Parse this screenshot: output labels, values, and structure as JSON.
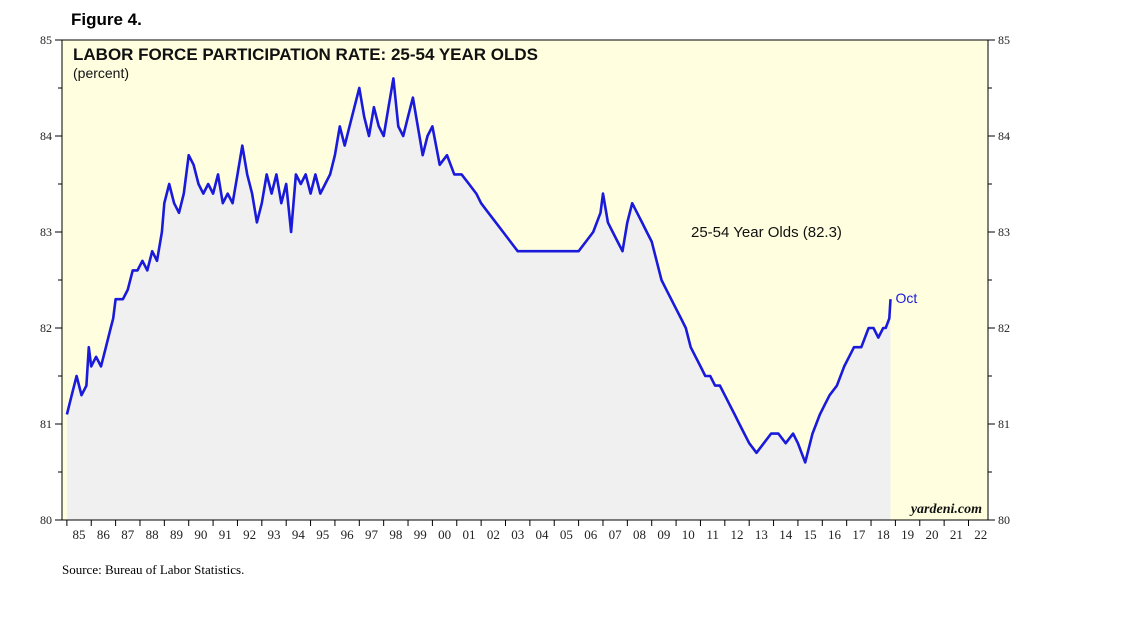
{
  "figure_label": "Figure 4.",
  "source": "Source: Bureau of Labor Statistics.",
  "colors": {
    "plot_bg": "#ffffe0",
    "area_fill": "#f0f0f0",
    "line": "#1a1adb",
    "axis": "#000000"
  },
  "chart_data": {
    "type": "line",
    "title": "LABOR FORCE PARTICIPATION RATE: 25-54 YEAR OLDS",
    "subtitle": "(percent)",
    "series_label": "25-54 Year Olds (82.3)",
    "end_label": "Oct",
    "watermark": "yardeni.com",
    "ylim": [
      80,
      85
    ],
    "xlim": [
      1984.8,
      2022.8
    ],
    "y_ticks": [
      "80",
      "81",
      "82",
      "83",
      "84",
      "85"
    ],
    "x_tick_labels": [
      "85",
      "86",
      "87",
      "88",
      "89",
      "90",
      "91",
      "92",
      "93",
      "94",
      "95",
      "96",
      "97",
      "98",
      "99",
      "00",
      "01",
      "02",
      "03",
      "04",
      "05",
      "06",
      "07",
      "08",
      "09",
      "10",
      "11",
      "12",
      "13",
      "14",
      "15",
      "16",
      "17",
      "18",
      "19",
      "20",
      "21",
      "22"
    ],
    "series": [
      {
        "name": "25-54 Year Olds",
        "points": [
          [
            1985.0,
            81.1
          ],
          [
            1985.2,
            81.3
          ],
          [
            1985.4,
            81.5
          ],
          [
            1985.6,
            81.3
          ],
          [
            1985.8,
            81.4
          ],
          [
            1985.9,
            81.8
          ],
          [
            1986.0,
            81.6
          ],
          [
            1986.2,
            81.7
          ],
          [
            1986.4,
            81.6
          ],
          [
            1986.6,
            81.8
          ],
          [
            1986.8,
            82.0
          ],
          [
            1986.9,
            82.1
          ],
          [
            1987.0,
            82.3
          ],
          [
            1987.3,
            82.3
          ],
          [
            1987.5,
            82.4
          ],
          [
            1987.7,
            82.6
          ],
          [
            1987.9,
            82.6
          ],
          [
            1988.1,
            82.7
          ],
          [
            1988.3,
            82.6
          ],
          [
            1988.5,
            82.8
          ],
          [
            1988.7,
            82.7
          ],
          [
            1988.9,
            83.0
          ],
          [
            1989.0,
            83.3
          ],
          [
            1989.2,
            83.5
          ],
          [
            1989.4,
            83.3
          ],
          [
            1989.6,
            83.2
          ],
          [
            1989.8,
            83.4
          ],
          [
            1990.0,
            83.8
          ],
          [
            1990.2,
            83.7
          ],
          [
            1990.4,
            83.5
          ],
          [
            1990.6,
            83.4
          ],
          [
            1990.8,
            83.5
          ],
          [
            1991.0,
            83.4
          ],
          [
            1991.2,
            83.6
          ],
          [
            1991.4,
            83.3
          ],
          [
            1991.6,
            83.4
          ],
          [
            1991.8,
            83.3
          ],
          [
            1992.0,
            83.6
          ],
          [
            1992.2,
            83.9
          ],
          [
            1992.4,
            83.6
          ],
          [
            1992.6,
            83.4
          ],
          [
            1992.8,
            83.1
          ],
          [
            1993.0,
            83.3
          ],
          [
            1993.2,
            83.6
          ],
          [
            1993.4,
            83.4
          ],
          [
            1993.6,
            83.6
          ],
          [
            1993.8,
            83.3
          ],
          [
            1994.0,
            83.5
          ],
          [
            1994.2,
            83.0
          ],
          [
            1994.4,
            83.6
          ],
          [
            1994.6,
            83.5
          ],
          [
            1994.8,
            83.6
          ],
          [
            1995.0,
            83.4
          ],
          [
            1995.2,
            83.6
          ],
          [
            1995.4,
            83.4
          ],
          [
            1995.6,
            83.5
          ],
          [
            1995.8,
            83.6
          ],
          [
            1996.0,
            83.8
          ],
          [
            1996.2,
            84.1
          ],
          [
            1996.4,
            83.9
          ],
          [
            1996.6,
            84.1
          ],
          [
            1996.8,
            84.3
          ],
          [
            1997.0,
            84.5
          ],
          [
            1997.2,
            84.2
          ],
          [
            1997.4,
            84.0
          ],
          [
            1997.6,
            84.3
          ],
          [
            1997.8,
            84.1
          ],
          [
            1998.0,
            84.0
          ],
          [
            1998.2,
            84.3
          ],
          [
            1998.4,
            84.6
          ],
          [
            1998.6,
            84.1
          ],
          [
            1998.8,
            84.0
          ],
          [
            1999.0,
            84.2
          ],
          [
            1999.2,
            84.4
          ],
          [
            1999.4,
            84.1
          ],
          [
            1999.6,
            83.8
          ],
          [
            1999.8,
            84.0
          ],
          [
            2000.0,
            84.1
          ],
          [
            2000.3,
            83.7
          ],
          [
            2000.6,
            83.8
          ],
          [
            2000.9,
            83.6
          ],
          [
            2001.2,
            83.6
          ],
          [
            2001.5,
            83.5
          ],
          [
            2001.8,
            83.4
          ],
          [
            2002.0,
            83.3
          ],
          [
            2002.3,
            83.2
          ],
          [
            2002.6,
            83.1
          ],
          [
            2002.9,
            83.0
          ],
          [
            2003.2,
            82.9
          ],
          [
            2003.5,
            82.8
          ],
          [
            2003.8,
            82.8
          ],
          [
            2004.0,
            82.8
          ],
          [
            2004.3,
            82.8
          ],
          [
            2004.6,
            82.8
          ],
          [
            2004.9,
            82.8
          ],
          [
            2005.2,
            82.8
          ],
          [
            2005.5,
            82.8
          ],
          [
            2005.8,
            82.8
          ],
          [
            2006.0,
            82.8
          ],
          [
            2006.3,
            82.9
          ],
          [
            2006.6,
            83.0
          ],
          [
            2006.9,
            83.2
          ],
          [
            2007.0,
            83.4
          ],
          [
            2007.2,
            83.1
          ],
          [
            2007.4,
            83.0
          ],
          [
            2007.6,
            82.9
          ],
          [
            2007.8,
            82.8
          ],
          [
            2008.0,
            83.1
          ],
          [
            2008.2,
            83.3
          ],
          [
            2008.4,
            83.2
          ],
          [
            2008.6,
            83.1
          ],
          [
            2008.8,
            83.0
          ],
          [
            2009.0,
            82.9
          ],
          [
            2009.2,
            82.7
          ],
          [
            2009.4,
            82.5
          ],
          [
            2009.6,
            82.4
          ],
          [
            2009.8,
            82.3
          ],
          [
            2010.0,
            82.2
          ],
          [
            2010.2,
            82.1
          ],
          [
            2010.4,
            82.0
          ],
          [
            2010.6,
            81.8
          ],
          [
            2010.8,
            81.7
          ],
          [
            2011.0,
            81.6
          ],
          [
            2011.2,
            81.5
          ],
          [
            2011.4,
            81.5
          ],
          [
            2011.6,
            81.4
          ],
          [
            2011.8,
            81.4
          ],
          [
            2012.0,
            81.3
          ],
          [
            2012.2,
            81.2
          ],
          [
            2012.4,
            81.1
          ],
          [
            2012.6,
            81.0
          ],
          [
            2012.8,
            80.9
          ],
          [
            2013.0,
            80.8
          ],
          [
            2013.3,
            80.7
          ],
          [
            2013.6,
            80.8
          ],
          [
            2013.9,
            80.9
          ],
          [
            2014.2,
            80.9
          ],
          [
            2014.5,
            80.8
          ],
          [
            2014.8,
            80.9
          ],
          [
            2015.0,
            80.8
          ],
          [
            2015.3,
            80.6
          ],
          [
            2015.6,
            80.9
          ],
          [
            2015.9,
            81.1
          ],
          [
            2016.1,
            81.2
          ],
          [
            2016.3,
            81.3
          ],
          [
            2016.6,
            81.4
          ],
          [
            2016.9,
            81.6
          ],
          [
            2017.1,
            81.7
          ],
          [
            2017.3,
            81.8
          ],
          [
            2017.6,
            81.8
          ],
          [
            2017.9,
            82.0
          ],
          [
            2018.1,
            82.0
          ],
          [
            2018.3,
            81.9
          ],
          [
            2018.5,
            82.0
          ],
          [
            2018.6,
            82.0
          ],
          [
            2018.75,
            82.1
          ],
          [
            2018.8,
            82.3
          ]
        ]
      }
    ]
  }
}
